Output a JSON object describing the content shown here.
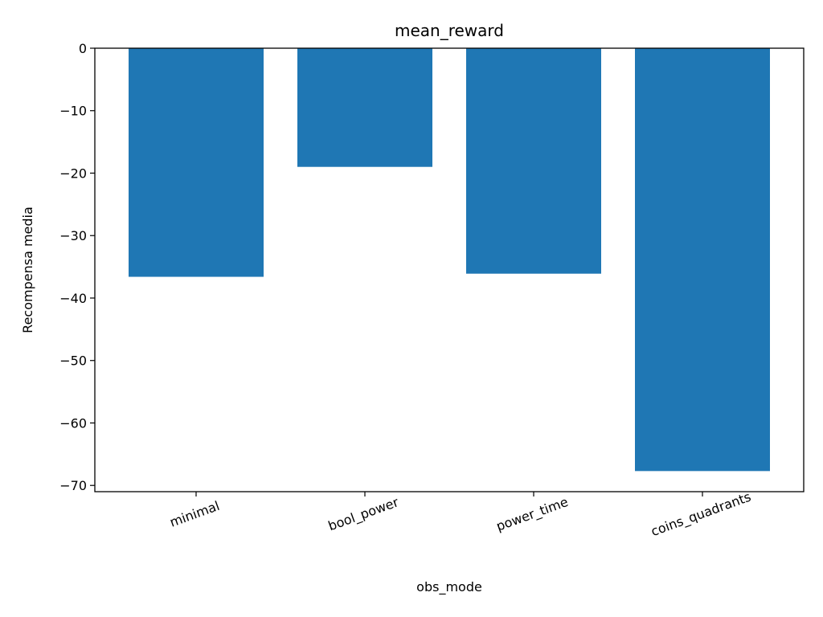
{
  "chart_data": {
    "type": "bar",
    "title": "mean_reward",
    "xlabel": "obs_mode",
    "ylabel": "Recompensa media",
    "categories": [
      "minimal",
      "bool_power",
      "power_time",
      "coins_quadrants"
    ],
    "values": [
      -36.6,
      -19.0,
      -36.1,
      -67.7
    ],
    "ylim": [
      -71,
      0
    ],
    "yticks": [
      0,
      -10,
      -20,
      -30,
      -40,
      -50,
      -60,
      -70
    ],
    "ytick_labels": [
      "0",
      "−10",
      "−20",
      "−30",
      "−40",
      "−50",
      "−60",
      "−70"
    ],
    "bar_color": "#1f77b4",
    "grid": false,
    "xtick_rotation_deg": -20
  }
}
